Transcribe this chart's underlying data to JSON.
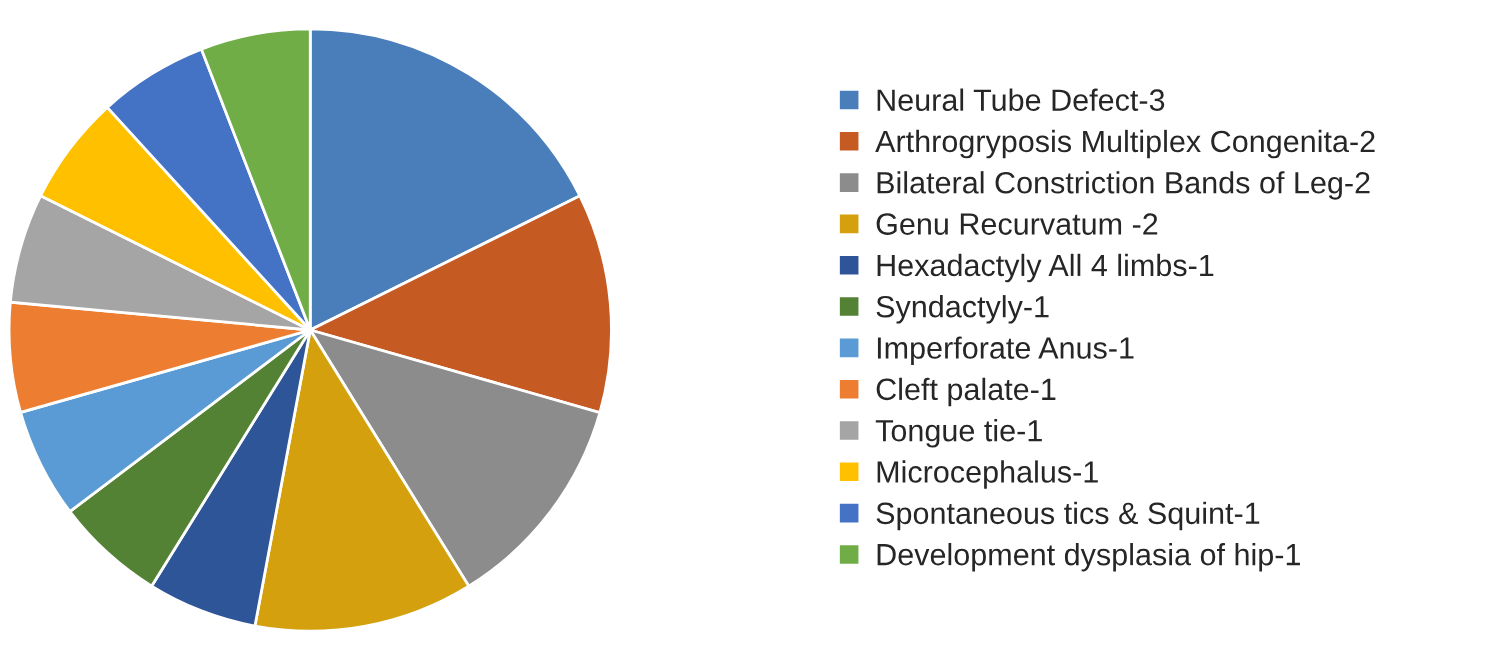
{
  "chart_data": {
    "type": "pie",
    "categories": [
      "Neural Tube Defect-3",
      "Arthrogryposis Multiplex Congenita-2",
      "Bilateral Constriction Bands of Leg-2",
      "Genu Recurvatum -2",
      "Hexadactyly All 4 limbs-1",
      "Syndactyly-1",
      "Imperforate Anus-1",
      "Cleft palate-1",
      "Tongue tie-1",
      "Microcephalus-1",
      "Spontaneous tics & Squint-1",
      "Development dysplasia of hip-1"
    ],
    "values": [
      17.65,
      11.77,
      11.76,
      11.76,
      5.8825,
      5.8825,
      5.8825,
      5.8825,
      5.8825,
      5.8825,
      5.8825,
      5.8825
    ],
    "colors": [
      "#4a7ebb",
      "#c55a22",
      "#8c8c8c",
      "#d4a00e",
      "#2e5597",
      "#548235",
      "#5b9bd5",
      "#ed7d31",
      "#a5a5a5",
      "#ffc000",
      "#4472c4",
      "#70ad47"
    ],
    "legend": "right"
  }
}
